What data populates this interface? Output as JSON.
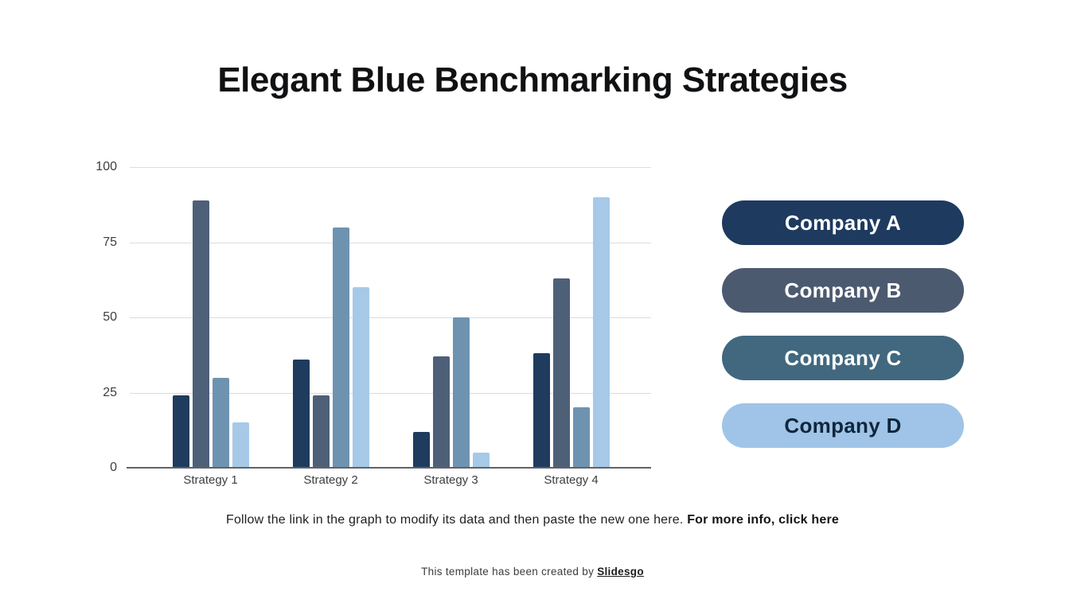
{
  "slide": {
    "title": "Elegant Blue Benchmarking Strategies",
    "note_regular": "Follow the link in the graph to modify its data and then paste the new one here. ",
    "note_link": "For more info, click here",
    "credit_text": "This template has been created by ",
    "credit_link": "Slidesgo"
  },
  "legend": {
    "position": "right",
    "items": [
      {
        "label": "Company A",
        "bg": "#1e3a5f",
        "fg": "#ffffff"
      },
      {
        "label": "Company B",
        "bg": "#4c5a70",
        "fg": "#ffffff"
      },
      {
        "label": "Company C",
        "bg": "#41687f",
        "fg": "#ffffff"
      },
      {
        "label": "Company D",
        "bg": "#9fc4e7",
        "fg": "#10253c"
      }
    ]
  },
  "chart_data": {
    "type": "bar",
    "title": "Elegant Blue Benchmarking Strategies",
    "categories": [
      "Strategy 1",
      "Strategy 2",
      "Strategy 3",
      "Strategy 4"
    ],
    "series": [
      {
        "name": "Company A",
        "color": "#1f3b5e",
        "values": [
          24,
          36,
          12,
          38
        ]
      },
      {
        "name": "Company B",
        "color": "#4e6078",
        "values": [
          89,
          24,
          37,
          63
        ]
      },
      {
        "name": "Company C",
        "color": "#6e93b1",
        "values": [
          30,
          80,
          50,
          20
        ]
      },
      {
        "name": "Company D",
        "color": "#a6c9e8",
        "values": [
          15,
          60,
          5,
          90
        ]
      }
    ],
    "xlabel": "",
    "ylabel": "",
    "ylim": [
      0,
      100
    ],
    "yticks": [
      0,
      25,
      50,
      75,
      100
    ],
    "grid": true,
    "grid_color": "#dadce0",
    "axis_color": "#5f6368",
    "tick_label_color": "#3c4043",
    "legend_position": "right"
  }
}
